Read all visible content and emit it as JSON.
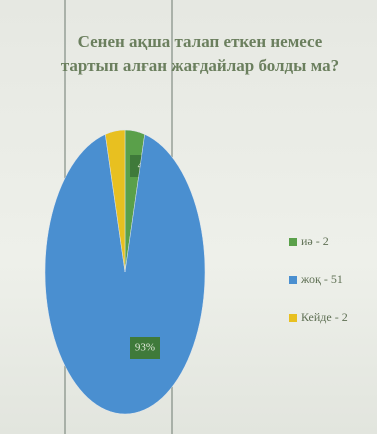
{
  "chart_data": {
    "type": "pie",
    "title": "Сенен ақша талап еткен немесе тартып алған жағдайлар болды ма?",
    "categories": [
      "иә - 2",
      "жоқ - 51",
      "Кейде - 2"
    ],
    "values": [
      4,
      93,
      4
    ],
    "value_labels": [
      "4%",
      "93%",
      null
    ],
    "colors": [
      "#5aa04a",
      "#4a8fd0",
      "#e8c020"
    ],
    "legend": "right"
  }
}
